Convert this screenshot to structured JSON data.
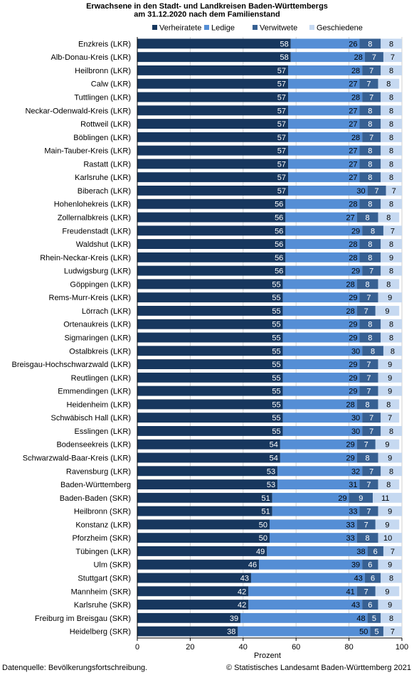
{
  "chart_data": {
    "type": "bar",
    "orientation": "horizontal",
    "stacked": true,
    "title": "Erwachsene in den Stadt- und Landkreisen Baden-Württembergs am 31.12.2020 nach dem Familienstand",
    "title_lines": [
      "Erwachsene in den Stadt- und Landkreisen Baden-Württembergs",
      "am 31.12.2020 nach dem Familienstand"
    ],
    "xlabel": "Prozent",
    "ylabel": "",
    "xlim": [
      0,
      100
    ],
    "xticks": [
      0,
      20,
      40,
      60,
      80,
      100
    ],
    "grid": true,
    "legend_position": "top",
    "categories": [
      "Enzkreis (LKR)",
      "Alb-Donau-Kreis (LKR)",
      "Heilbronn (LKR)",
      "Calw (LKR)",
      "Tuttlingen (LKR)",
      "Neckar-Odenwald-Kreis (LKR)",
      "Rottweil (LKR)",
      "Böblingen (LKR)",
      "Main-Tauber-Kreis (LKR)",
      "Rastatt (LKR)",
      "Karlsruhe (LKR)",
      "Biberach (LKR)",
      "Hohenlohekreis (LKR)",
      "Zollernalbkreis (LKR)",
      "Freudenstadt (LKR)",
      "Waldshut (LKR)",
      "Rhein-Neckar-Kreis (LKR)",
      "Ludwigsburg (LKR)",
      "Göppingen (LKR)",
      "Rems-Murr-Kreis  (LKR)",
      "Lörrach (LKR)",
      "Ortenaukreis (LKR)",
      "Sigmaringen (LKR)",
      "Ostalbkreis (LKR)",
      "Breisgau-Hochschwarzwald (LKR)",
      "Reutlingen (LKR)",
      "Emmendingen (LKR)",
      "Heidenheim (LKR)",
      "Schwäbisch Hall (LKR)",
      "Esslingen (LKR)",
      "Bodenseekreis (LKR)",
      "Schwarzwald-Baar-Kreis (LKR)",
      "Ravensburg (LKR)",
      "Baden-Württemberg",
      "Baden-Baden (SKR)",
      "Heilbronn (SKR)",
      "Konstanz (LKR)",
      "Pforzheim (SKR)",
      "Tübingen (LKR)",
      "Ulm (SKR)",
      "Stuttgart (SKR)",
      "Mannheim (SKR)",
      "Karlsruhe (SKR)",
      "Freiburg im Breisgau (SKR)",
      "Heidelberg (SKR)"
    ],
    "series": [
      {
        "name": "Verheiratete",
        "color": "#17375e",
        "values": [
          58,
          58,
          57,
          57,
          57,
          57,
          57,
          57,
          57,
          57,
          57,
          57,
          56,
          56,
          56,
          56,
          56,
          56,
          55,
          55,
          55,
          55,
          55,
          55,
          55,
          55,
          55,
          55,
          55,
          55,
          54,
          54,
          53,
          53,
          51,
          51,
          50,
          50,
          49,
          46,
          43,
          42,
          42,
          39,
          38
        ]
      },
      {
        "name": "Ledige",
        "color": "#558ed5",
        "values": [
          26,
          28,
          28,
          27,
          28,
          27,
          27,
          28,
          27,
          27,
          27,
          30,
          28,
          27,
          29,
          28,
          28,
          29,
          28,
          29,
          28,
          29,
          29,
          30,
          29,
          29,
          29,
          28,
          30,
          30,
          29,
          29,
          32,
          31,
          29,
          33,
          33,
          33,
          38,
          39,
          43,
          41,
          43,
          48,
          50
        ]
      },
      {
        "name": "Verwitwete",
        "color": "#376092",
        "values": [
          8,
          7,
          7,
          7,
          7,
          8,
          8,
          7,
          8,
          8,
          8,
          7,
          8,
          8,
          8,
          8,
          8,
          7,
          8,
          7,
          7,
          8,
          8,
          8,
          7,
          7,
          7,
          8,
          7,
          7,
          7,
          8,
          7,
          7,
          9,
          7,
          7,
          8,
          6,
          6,
          6,
          7,
          6,
          5,
          5
        ]
      },
      {
        "name": "Geschiedene",
        "color": "#c6d9f1",
        "values": [
          8,
          7,
          8,
          8,
          8,
          8,
          8,
          8,
          8,
          8,
          8,
          7,
          8,
          8,
          7,
          8,
          9,
          8,
          8,
          9,
          9,
          8,
          8,
          8,
          9,
          9,
          9,
          8,
          7,
          8,
          9,
          9,
          8,
          8,
          11,
          9,
          9,
          10,
          7,
          9,
          8,
          9,
          9,
          8,
          7
        ]
      }
    ]
  },
  "footer": {
    "source": "Datenquelle: Bevölkerungsfortschreibung.",
    "copyright": "© Statistisches Landesamt Baden-Württemberg 2021"
  }
}
